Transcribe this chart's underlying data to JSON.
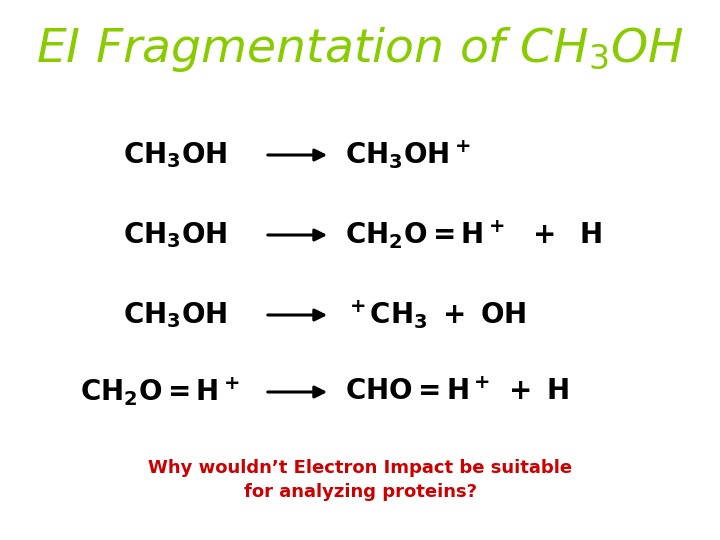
{
  "background_color": "#ffffff",
  "title_color": "#88cc00",
  "body_color": "#000000",
  "question_color": "#cc0000",
  "question_line1": "Why wouldn’t Electron Impact be suitable",
  "question_line2": "for analyzing proteins?"
}
